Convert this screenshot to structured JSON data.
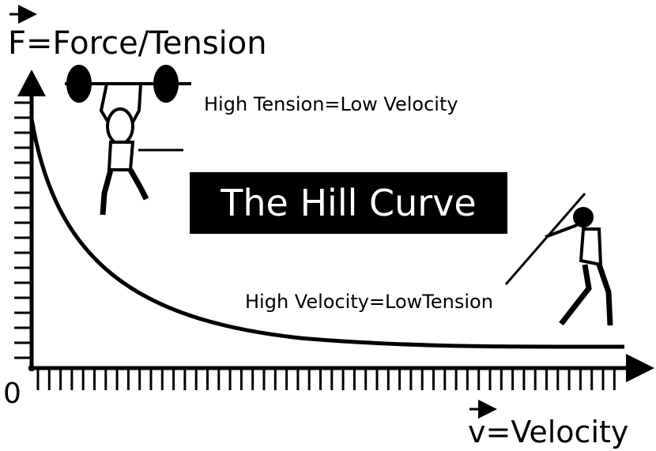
{
  "title": "The Hill Curve",
  "y_axis_label": "F=Force/Tension",
  "x_axis_label": "v=Velocity",
  "origin_label": "0",
  "annotations": [
    "High Tension=Low Velocity",
    "High Velocity=LowTension"
  ]
}
